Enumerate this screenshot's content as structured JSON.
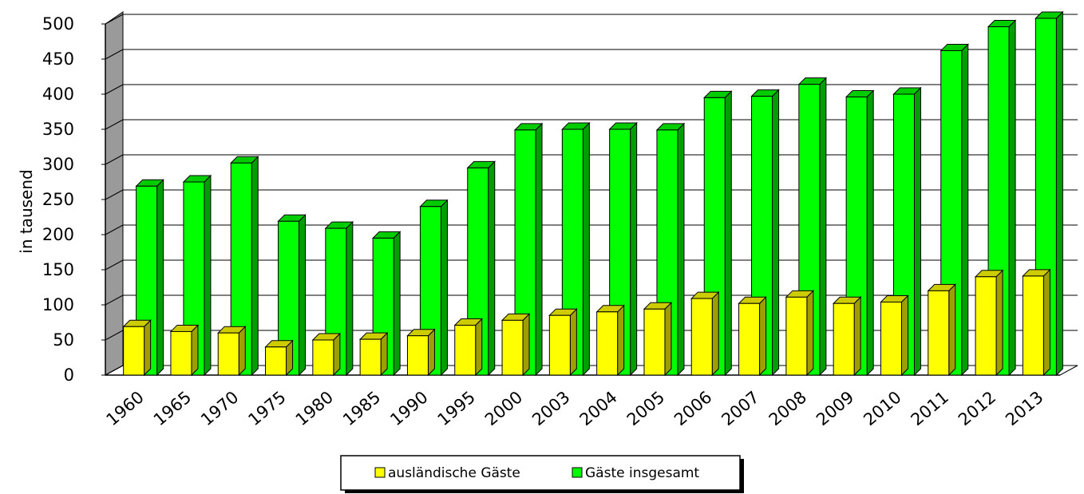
{
  "chart_data": {
    "type": "bar",
    "ylabel": "in tausend",
    "ylim": [
      0,
      500
    ],
    "yticks": [
      0,
      50,
      100,
      150,
      200,
      250,
      300,
      350,
      400,
      450,
      500
    ],
    "grid": true,
    "categories": [
      "1960",
      "1965",
      "1970",
      "1975",
      "1980",
      "1985",
      "1990",
      "1995",
      "2000",
      "2003",
      "2004",
      "2005",
      "2006",
      "2007",
      "2008",
      "2009",
      "2010",
      "2011",
      "2012",
      "2013"
    ],
    "series": [
      {
        "name": "ausländische Gäste",
        "color": "#ffff00",
        "values": [
          69,
          62,
          60,
          40,
          50,
          51,
          56,
          71,
          78,
          85,
          90,
          94,
          109,
          102,
          111,
          102,
          104,
          120,
          140,
          141
        ]
      },
      {
        "name": "Gäste insgesamt",
        "color": "#00ff00",
        "values": [
          269,
          275,
          302,
          219,
          209,
          195,
          240,
          295,
          349,
          350,
          350,
          349,
          395,
          397,
          414,
          396,
          400,
          462,
          496,
          508
        ]
      }
    ],
    "legend_position": "bottom"
  }
}
